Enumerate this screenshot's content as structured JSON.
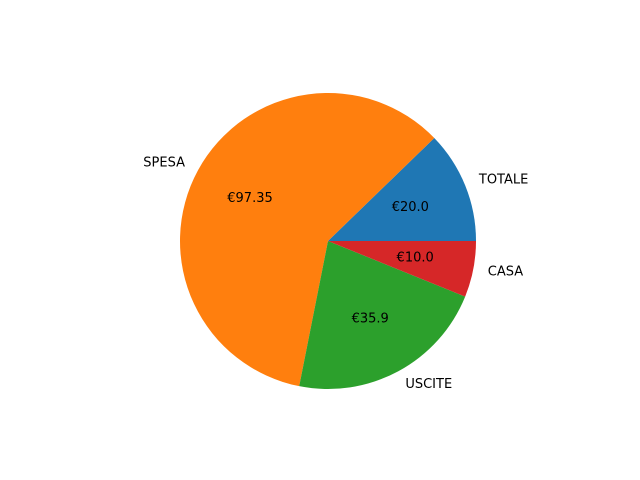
{
  "chart_data": {
    "type": "pie",
    "categories": [
      "TOTALE",
      "SPESA",
      "USCITE",
      "CASA"
    ],
    "values": [
      20.0,
      97.35,
      35.9,
      10.0
    ],
    "value_labels": [
      "€20.0",
      "€97.35",
      "€35.9",
      "€10.0"
    ],
    "colors": [
      "#1f77b4",
      "#ff7f0e",
      "#2ca02c",
      "#d62728"
    ],
    "start_angle_deg": 0,
    "direction": "counterclockwise",
    "title": "",
    "legend": "none"
  }
}
